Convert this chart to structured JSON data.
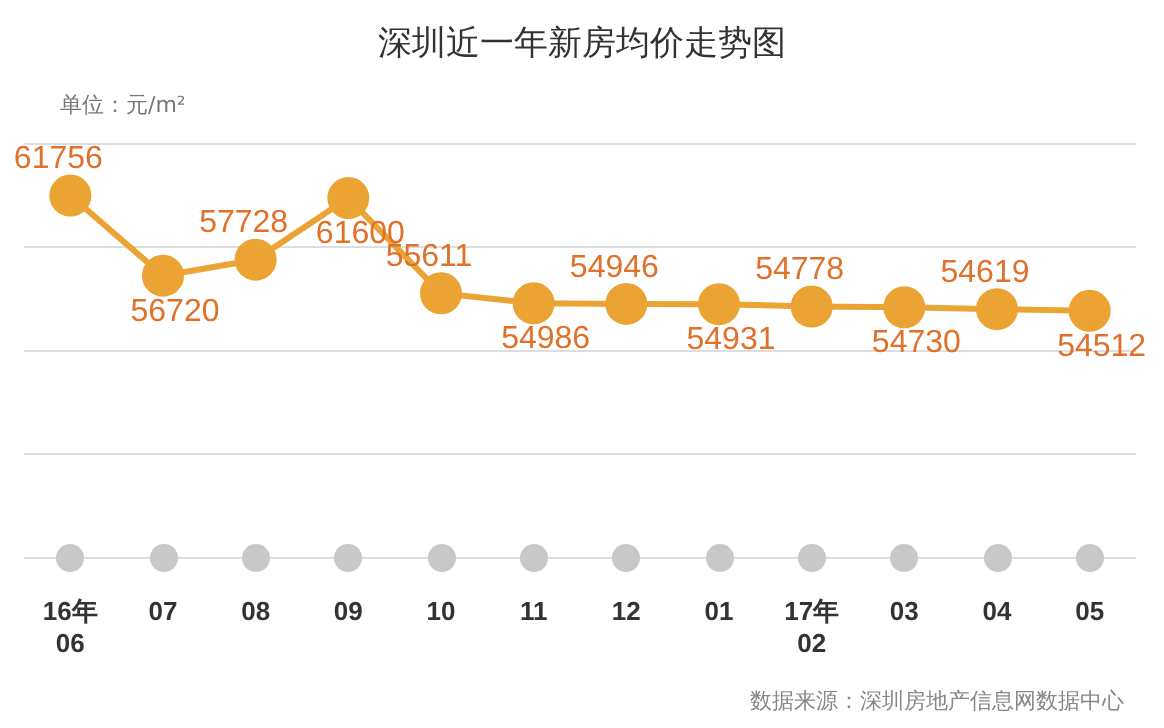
{
  "chart_data": {
    "type": "line",
    "title": "深圳近一年新房均价走势图",
    "subtitle": "单位：元/m²",
    "categories": [
      "16年\n06",
      "07",
      "08",
      "09",
      "10",
      "11",
      "12",
      "01",
      "17年\n02",
      "03",
      "04",
      "05"
    ],
    "series": [
      {
        "color": "#eba434",
        "values": [
          61756,
          56720,
          57728,
          61600,
          55611,
          54986,
          54946,
          54931,
          54778,
          54730,
          54619,
          54512
        ]
      }
    ],
    "data_labels": true,
    "marker": "circle",
    "line_style": "solid",
    "grid": "y",
    "legend": false,
    "tick_labels": "x",
    "ylim": [
      39000,
      65000
    ],
    "yticks": [
      {
        "value": 39000,
        "label": null
      },
      {
        "value": 45500,
        "label": null
      },
      {
        "value": 52000,
        "label": null
      },
      {
        "value": 58500,
        "label": null
      },
      {
        "value": 65000,
        "label": null
      }
    ],
    "annotations": [
      "数据来源：深圳房地产信息网数据中心"
    ]
  }
}
